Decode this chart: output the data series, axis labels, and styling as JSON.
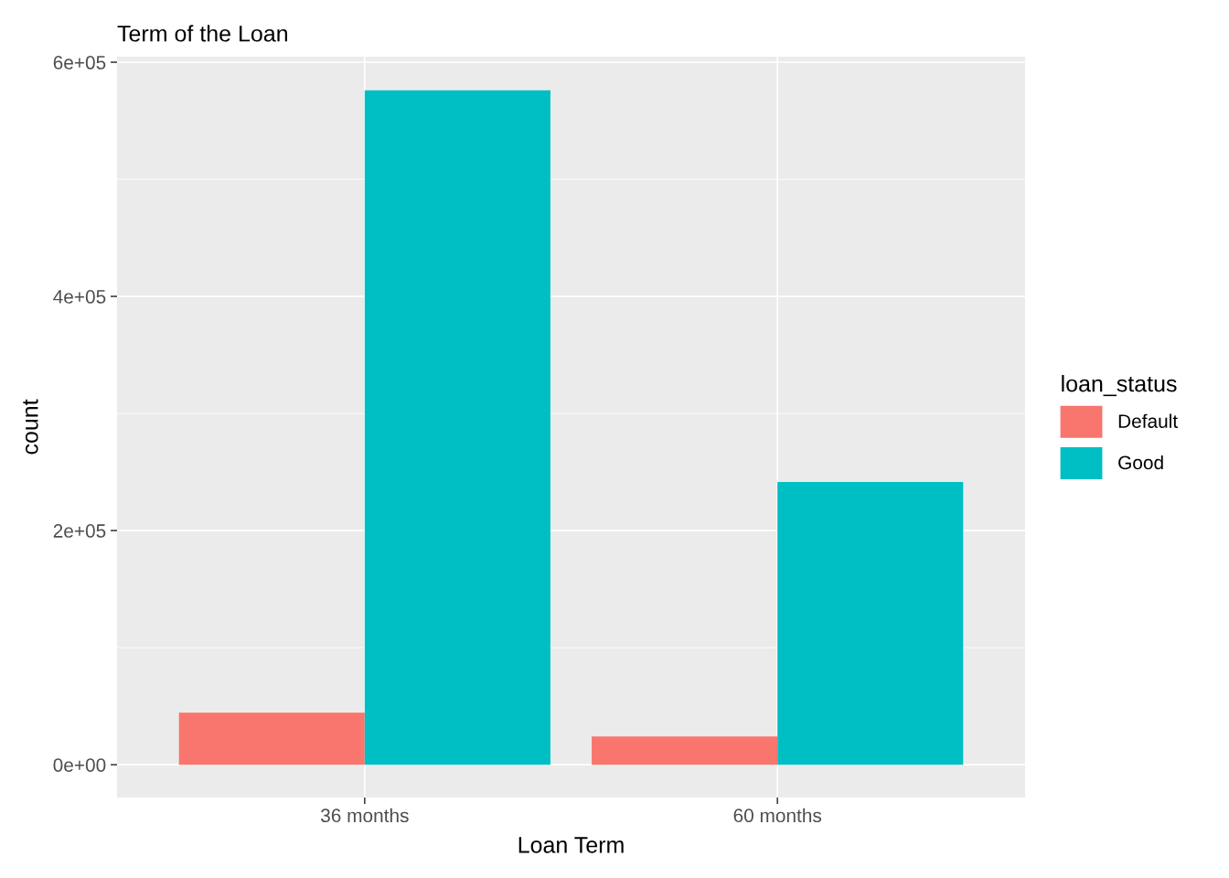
{
  "chart_data": {
    "type": "bar",
    "title": "Term of the Loan",
    "xlabel": "Loan Term",
    "ylabel": "count",
    "legend_title": "loan_status",
    "categories": [
      "36 months",
      "60 months"
    ],
    "series": [
      {
        "name": "Default",
        "color": "#f8766d",
        "values": [
          44500,
          24200
        ]
      },
      {
        "name": "Good",
        "color": "#00bfc4",
        "values": [
          576000,
          241400
        ]
      }
    ],
    "ylim": [
      -28000,
      604700
    ],
    "yticks": [
      {
        "value": 0,
        "label": "0e+00"
      },
      {
        "value": 200000,
        "label": "2e+05"
      },
      {
        "value": 400000,
        "label": "4e+05"
      },
      {
        "value": 600000,
        "label": "6e+05"
      }
    ],
    "grid": true,
    "legend": "right"
  }
}
